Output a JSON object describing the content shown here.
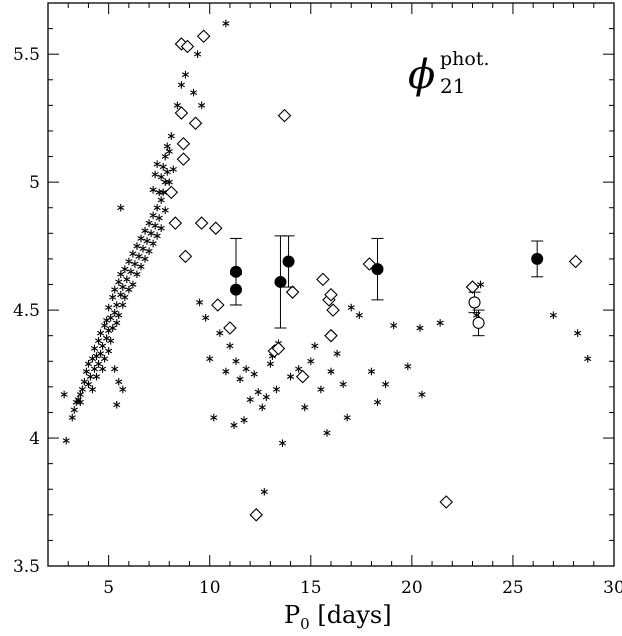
{
  "chart_data": {
    "type": "scatter",
    "xlabel_main": "P",
    "xlabel_sub": "0",
    "xlabel_rest": " [days]",
    "ylabel": "",
    "xlim": [
      2,
      30
    ],
    "ylim": [
      3.5,
      5.7
    ],
    "x_ticks": [
      5,
      10,
      15,
      20,
      25,
      30
    ],
    "x_tick_labels": [
      "5",
      "10",
      "15",
      "20",
      "25",
      "30"
    ],
    "y_ticks": [
      3.5,
      4.0,
      4.5,
      5.0,
      5.5
    ],
    "y_tick_labels": [
      "3.5",
      "4",
      "4.5",
      "5",
      "5.5"
    ],
    "annotation": {
      "symbol": "ϕ",
      "superscript": "phot.",
      "subscript": "21"
    },
    "series": [
      {
        "marker": "asterisk",
        "points": [
          [
            2.8,
            4.17
          ],
          [
            2.9,
            3.99
          ],
          [
            3.2,
            4.08
          ],
          [
            3.3,
            4.11
          ],
          [
            3.4,
            4.14
          ],
          [
            3.5,
            4.15
          ],
          [
            3.6,
            4.17
          ],
          [
            3.7,
            4.19
          ],
          [
            3.6,
            4.14
          ],
          [
            3.8,
            4.22
          ],
          [
            3.9,
            4.26
          ],
          [
            4.0,
            4.21
          ],
          [
            4.0,
            4.29
          ],
          [
            4.1,
            4.24
          ],
          [
            4.2,
            4.31
          ],
          [
            4.2,
            4.19
          ],
          [
            4.3,
            4.27
          ],
          [
            4.3,
            4.35
          ],
          [
            4.4,
            4.24
          ],
          [
            4.4,
            4.32
          ],
          [
            4.5,
            4.29
          ],
          [
            4.5,
            4.38
          ],
          [
            4.6,
            4.33
          ],
          [
            4.6,
            4.41
          ],
          [
            4.7,
            4.27
          ],
          [
            4.7,
            4.36
          ],
          [
            4.8,
            4.44
          ],
          [
            4.8,
            4.31
          ],
          [
            4.9,
            4.39
          ],
          [
            4.9,
            4.46
          ],
          [
            5.0,
            4.34
          ],
          [
            5.0,
            4.42
          ],
          [
            5.0,
            4.51
          ],
          [
            5.1,
            4.38
          ],
          [
            5.1,
            4.47
          ],
          [
            5.2,
            4.55
          ],
          [
            5.2,
            4.43
          ],
          [
            5.3,
            4.49
          ],
          [
            5.3,
            4.58
          ],
          [
            5.4,
            4.45
          ],
          [
            5.4,
            4.52
          ],
          [
            5.5,
            4.61
          ],
          [
            5.5,
            4.48
          ],
          [
            5.6,
            4.56
          ],
          [
            5.6,
            4.64
          ],
          [
            5.7,
            4.52
          ],
          [
            5.7,
            4.59
          ],
          [
            5.8,
            4.66
          ],
          [
            5.8,
            4.55
          ],
          [
            5.9,
            4.62
          ],
          [
            6.0,
            4.69
          ],
          [
            6.0,
            4.58
          ],
          [
            6.1,
            4.65
          ],
          [
            6.2,
            4.72
          ],
          [
            6.2,
            4.6
          ],
          [
            6.3,
            4.68
          ],
          [
            6.4,
            4.75
          ],
          [
            6.4,
            4.64
          ],
          [
            6.5,
            4.71
          ],
          [
            6.6,
            4.78
          ],
          [
            6.6,
            4.67
          ],
          [
            6.7,
            4.74
          ],
          [
            6.8,
            4.81
          ],
          [
            6.8,
            4.7
          ],
          [
            6.9,
            4.77
          ],
          [
            7.0,
            4.84
          ],
          [
            7.0,
            4.73
          ],
          [
            7.1,
            4.8
          ],
          [
            7.2,
            4.87
          ],
          [
            7.2,
            4.76
          ],
          [
            7.3,
            4.83
          ],
          [
            7.4,
            4.9
          ],
          [
            7.4,
            4.79
          ],
          [
            7.5,
            4.86
          ],
          [
            7.6,
            4.93
          ],
          [
            7.6,
            4.82
          ],
          [
            7.7,
            4.96
          ],
          [
            7.8,
            5.0
          ],
          [
            7.8,
            4.89
          ],
          [
            7.9,
            5.04
          ],
          [
            7.5,
            4.96
          ],
          [
            7.7,
            5.06
          ],
          [
            7.8,
            5.1
          ],
          [
            7.9,
            5.14
          ],
          [
            8.0,
            5.0
          ],
          [
            8.1,
            5.18
          ],
          [
            7.4,
            5.07
          ],
          [
            7.6,
            5.02
          ],
          [
            7.2,
            4.97
          ],
          [
            7.3,
            5.03
          ],
          [
            8.2,
            5.05
          ],
          [
            8.0,
            5.12
          ],
          [
            5.6,
            4.9
          ],
          [
            5.3,
            4.27
          ],
          [
            5.5,
            4.22
          ],
          [
            5.7,
            4.19
          ],
          [
            5.4,
            4.13
          ],
          [
            8.4,
            5.3
          ],
          [
            8.6,
            5.38
          ],
          [
            8.8,
            5.42
          ],
          [
            9.2,
            5.35
          ],
          [
            9.4,
            5.5
          ],
          [
            9.6,
            5.3
          ],
          [
            10.8,
            5.62
          ],
          [
            9.5,
            4.53
          ],
          [
            9.8,
            4.47
          ],
          [
            10.0,
            4.31
          ],
          [
            10.2,
            4.08
          ],
          [
            10.5,
            4.41
          ],
          [
            10.8,
            4.26
          ],
          [
            11.0,
            4.36
          ],
          [
            11.2,
            4.05
          ],
          [
            11.3,
            4.3
          ],
          [
            11.5,
            4.23
          ],
          [
            11.7,
            4.07
          ],
          [
            11.8,
            4.27
          ],
          [
            12.0,
            4.15
          ],
          [
            12.2,
            4.25
          ],
          [
            12.4,
            4.18
          ],
          [
            12.6,
            4.12
          ],
          [
            12.8,
            4.16
          ],
          [
            13.0,
            4.29
          ],
          [
            13.1,
            4.32
          ],
          [
            13.3,
            4.19
          ],
          [
            13.4,
            4.37
          ],
          [
            13.6,
            3.98
          ],
          [
            12.7,
            3.79
          ],
          [
            14.0,
            4.24
          ],
          [
            14.4,
            4.27
          ],
          [
            14.7,
            4.12
          ],
          [
            15.0,
            4.3
          ],
          [
            15.2,
            4.36
          ],
          [
            15.5,
            4.19
          ],
          [
            15.8,
            4.02
          ],
          [
            16.0,
            4.26
          ],
          [
            16.3,
            4.33
          ],
          [
            16.6,
            4.21
          ],
          [
            16.8,
            4.08
          ],
          [
            17.0,
            4.51
          ],
          [
            17.4,
            4.48
          ],
          [
            18.0,
            4.26
          ],
          [
            18.3,
            4.14
          ],
          [
            18.7,
            4.21
          ],
          [
            19.1,
            4.44
          ],
          [
            19.8,
            4.28
          ],
          [
            20.4,
            4.43
          ],
          [
            20.5,
            4.17
          ],
          [
            21.4,
            4.45
          ],
          [
            23.2,
            4.48
          ],
          [
            23.4,
            4.6
          ],
          [
            27.0,
            4.48
          ],
          [
            28.2,
            4.41
          ],
          [
            28.7,
            4.31
          ]
        ]
      },
      {
        "marker": "diamond",
        "points": [
          [
            8.6,
            5.54
          ],
          [
            8.9,
            5.53
          ],
          [
            9.7,
            5.57
          ],
          [
            8.7,
            5.15
          ],
          [
            8.6,
            5.27
          ],
          [
            8.7,
            5.09
          ],
          [
            9.3,
            5.23
          ],
          [
            8.1,
            4.96
          ],
          [
            8.3,
            4.84
          ],
          [
            9.6,
            4.84
          ],
          [
            10.3,
            4.82
          ],
          [
            8.8,
            4.71
          ],
          [
            10.4,
            4.52
          ],
          [
            11.0,
            4.43
          ],
          [
            13.7,
            5.26
          ],
          [
            13.2,
            4.34
          ],
          [
            13.4,
            4.35
          ],
          [
            14.1,
            4.57
          ],
          [
            15.6,
            4.62
          ],
          [
            15.9,
            4.54
          ],
          [
            16.0,
            4.56
          ],
          [
            16.1,
            4.5
          ],
          [
            16.0,
            4.4
          ],
          [
            14.6,
            4.24
          ],
          [
            17.9,
            4.68
          ],
          [
            23.0,
            4.59
          ],
          [
            28.1,
            4.69
          ],
          [
            12.3,
            3.7
          ],
          [
            21.7,
            3.75
          ]
        ]
      },
      {
        "marker": "filled-circle",
        "points": [
          {
            "x": 11.3,
            "y": 4.65,
            "err": 0.13
          },
          {
            "x": 11.3,
            "y": 4.58,
            "err": 0.06
          },
          {
            "x": 13.5,
            "y": 4.61,
            "err": 0.18
          },
          {
            "x": 13.9,
            "y": 4.69,
            "err": 0.1
          },
          {
            "x": 18.3,
            "y": 4.66,
            "err": 0.12
          },
          {
            "x": 26.2,
            "y": 4.7,
            "err": 0.07
          }
        ]
      },
      {
        "marker": "open-circle",
        "points": [
          {
            "x": 23.1,
            "y": 4.53,
            "err": 0.04
          },
          {
            "x": 23.3,
            "y": 4.45,
            "err": 0.05
          }
        ]
      }
    ]
  }
}
